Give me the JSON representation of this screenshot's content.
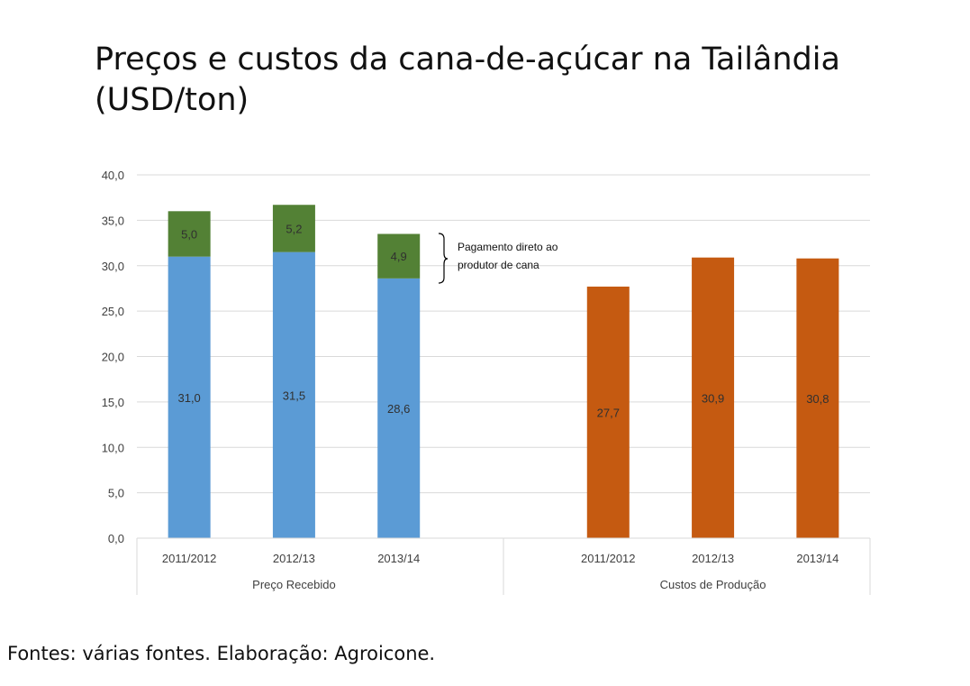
{
  "title_line1": "Preços e custos da cana-de-açúcar na Tailândia",
  "title_line2": "(USD/ton)",
  "footer": "Fontes: várias fontes. Elaboração: Agroicone.",
  "annotation": {
    "line1": "Pagamento direto ao",
    "line2": "produtor de cana"
  },
  "colors": {
    "preco_base": "#5b9bd5",
    "pagamento_direto": "#538135",
    "custos": "#c55a11"
  },
  "chart_data": {
    "type": "bar",
    "stacked": true,
    "ylim": [
      0,
      40
    ],
    "y_ticks": [
      "0,0",
      "5,0",
      "10,0",
      "15,0",
      "20,0",
      "25,0",
      "30,0",
      "35,0",
      "40,0"
    ],
    "grid": true,
    "groups": [
      {
        "name": "Preço Recebido",
        "categories": [
          "2011/2012",
          "2012/13",
          "2013/14"
        ],
        "series": [
          {
            "values": [
              31.0,
              31.5,
              28.6
            ],
            "labels": [
              "31,0",
              "31,5",
              "28,6"
            ],
            "color": "#5b9bd5"
          },
          {
            "values": [
              5.0,
              5.2,
              4.9
            ],
            "labels": [
              "5,0",
              "5,2",
              "4,9"
            ],
            "color": "#538135"
          }
        ]
      },
      {
        "name": "Custos de Produção",
        "categories": [
          "2011/2012",
          "2012/13",
          "2013/14"
        ],
        "series": [
          {
            "values": [
              27.7,
              30.9,
              30.8
            ],
            "labels": [
              "27,7",
              "30,9",
              "30,8"
            ],
            "color": "#c55a11"
          }
        ]
      }
    ]
  }
}
